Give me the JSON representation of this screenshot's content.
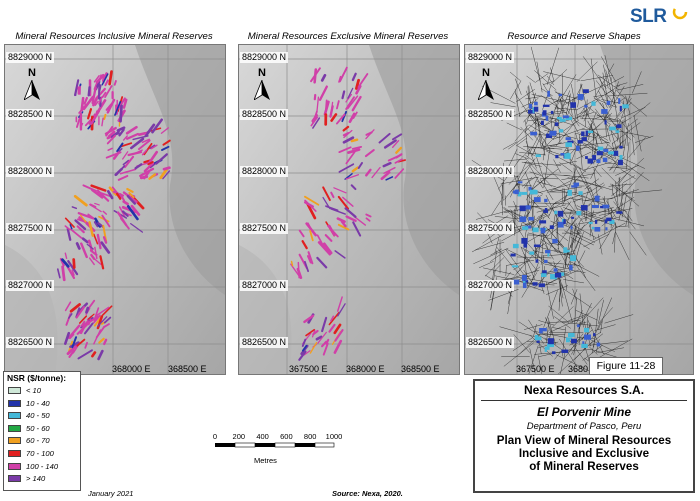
{
  "logo": {
    "text": "SLR"
  },
  "panels": [
    {
      "title": "Mineral Resources Inclusive Mineral Reserves",
      "northing_labels": [
        "8829000 N",
        "8828500 N",
        "8828000 N",
        "8827500 N",
        "8827000 N",
        "8826500 N"
      ],
      "easting_labels": [
        "368000 E",
        "368500 E"
      ]
    },
    {
      "title": "Mineral Resources Exclusive Mineral Reserves",
      "northing_labels": [
        "8829000 N",
        "8828500 N",
        "8828000 N",
        "8827500 N",
        "8827000 N",
        "8826500 N"
      ],
      "easting_labels": [
        "367500 E",
        "368000 E",
        "368500 E"
      ]
    },
    {
      "title": "Resource and Reserve Shapes",
      "northing_labels": [
        "8829000 N",
        "8828500 N",
        "8828000 N",
        "8827500 N",
        "8827000 N",
        "8826500 N"
      ],
      "easting_labels": [
        "367500 E",
        "3680"
      ]
    }
  ],
  "north_label": "N",
  "figure_label": "Figure 11-28",
  "legend": {
    "title": "NSR ($/tonne):",
    "items": [
      {
        "label": "< 10",
        "color": "#cfe8d8"
      },
      {
        "label": "10 - 40",
        "color": "#2233aa"
      },
      {
        "label": "40 - 50",
        "color": "#44b8d8"
      },
      {
        "label": "50 - 60",
        "color": "#22a844"
      },
      {
        "label": "60 - 70",
        "color": "#f0a020"
      },
      {
        "label": "70 - 100",
        "color": "#e02020"
      },
      {
        "label": "100 - 140",
        "color": "#d040a8"
      },
      {
        "label": "> 140",
        "color": "#7a3aa8"
      }
    ]
  },
  "scale": {
    "ticks": [
      "0",
      "200",
      "400",
      "600",
      "800",
      "1000"
    ],
    "unit": "Metres"
  },
  "footer": {
    "date": "January 2021",
    "source": "Source: Nexa, 2020."
  },
  "title_block": {
    "company": "Nexa Resources S.A.",
    "mine": "El Porvenir Mine",
    "location": "Department of Pasco, Peru",
    "description_lines": [
      "Plan View of Mineral Resources",
      "Inclusive and Exclusive",
      "of Mineral Reserves"
    ]
  }
}
